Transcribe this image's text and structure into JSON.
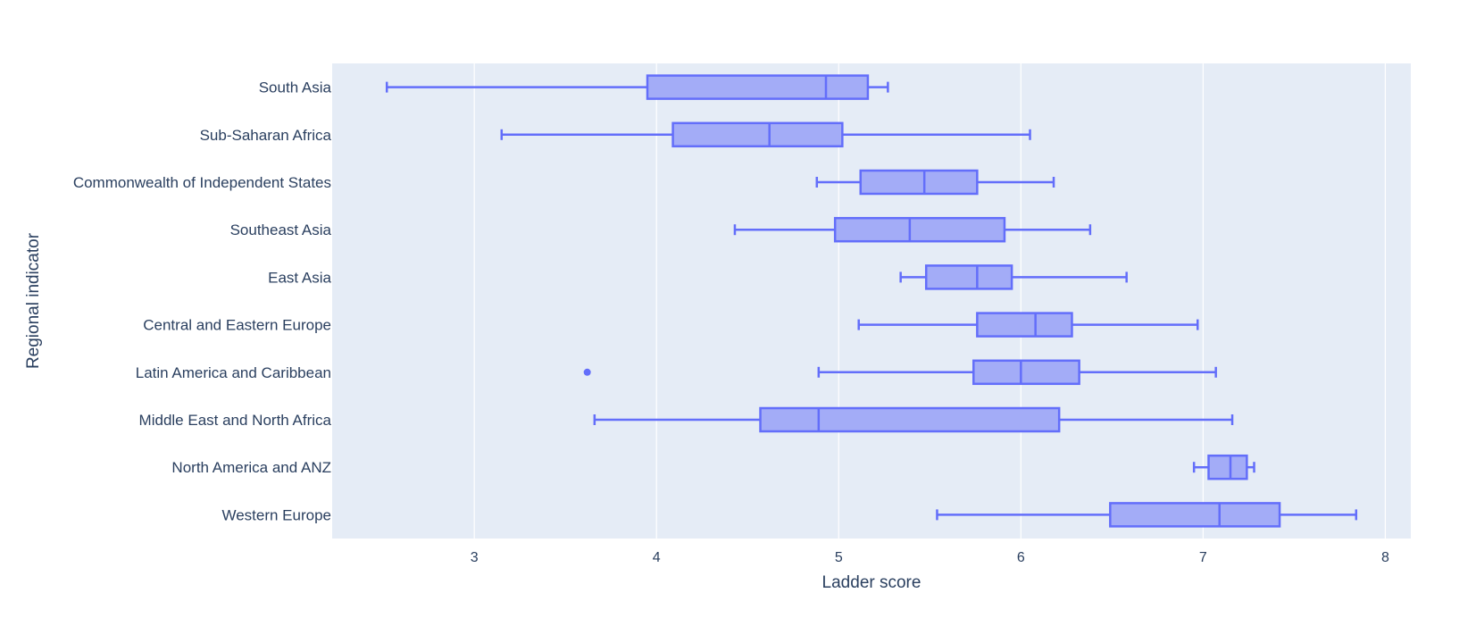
{
  "chart_data": {
    "type": "box",
    "orientation": "horizontal",
    "xlabel": "Ladder score",
    "ylabel": "Regional indicator",
    "xlim": [
      2.22,
      8.14
    ],
    "xticks": [
      3,
      4,
      5,
      6,
      7,
      8
    ],
    "grid": true,
    "colors": {
      "plot_bg": "#E5ECF6",
      "grid": "#ffffff",
      "box_fill": "#a3acf7",
      "box_line": "#636EFA",
      "axis_text": "#2a3f5f"
    },
    "categories": [
      "South Asia",
      "Sub-Saharan Africa",
      "Commonwealth of Independent States",
      "Southeast Asia",
      "East Asia",
      "Central and Eastern Europe",
      "Latin America and Caribbean",
      "Middle East and North Africa",
      "North America and ANZ",
      "Western Europe"
    ],
    "boxes": [
      {
        "category": "South Asia",
        "min": 2.52,
        "q1": 3.95,
        "median": 4.93,
        "q3": 5.16,
        "max": 5.27,
        "outliers": []
      },
      {
        "category": "Sub-Saharan Africa",
        "min": 3.15,
        "q1": 4.09,
        "median": 4.62,
        "q3": 5.02,
        "max": 6.05,
        "outliers": []
      },
      {
        "category": "Commonwealth of Independent States",
        "min": 4.88,
        "q1": 5.12,
        "median": 5.47,
        "q3": 5.76,
        "max": 6.18,
        "outliers": []
      },
      {
        "category": "Southeast Asia",
        "min": 4.43,
        "q1": 4.98,
        "median": 5.39,
        "q3": 5.91,
        "max": 6.38,
        "outliers": []
      },
      {
        "category": "East Asia",
        "min": 5.34,
        "q1": 5.48,
        "median": 5.76,
        "q3": 5.95,
        "max": 6.58,
        "outliers": []
      },
      {
        "category": "Central and Eastern Europe",
        "min": 5.11,
        "q1": 5.76,
        "median": 6.08,
        "q3": 6.28,
        "max": 6.97,
        "outliers": []
      },
      {
        "category": "Latin America and Caribbean",
        "min": 4.89,
        "q1": 5.74,
        "median": 6.0,
        "q3": 6.32,
        "max": 7.07,
        "outliers": [
          3.62
        ]
      },
      {
        "category": "Middle East and North Africa",
        "min": 3.66,
        "q1": 4.57,
        "median": 4.89,
        "q3": 6.21,
        "max": 7.16,
        "outliers": []
      },
      {
        "category": "North America and ANZ",
        "min": 6.95,
        "q1": 7.03,
        "median": 7.15,
        "q3": 7.24,
        "max": 7.28,
        "outliers": []
      },
      {
        "category": "Western Europe",
        "min": 5.54,
        "q1": 6.49,
        "median": 7.09,
        "q3": 7.42,
        "max": 7.84,
        "outliers": []
      }
    ]
  }
}
